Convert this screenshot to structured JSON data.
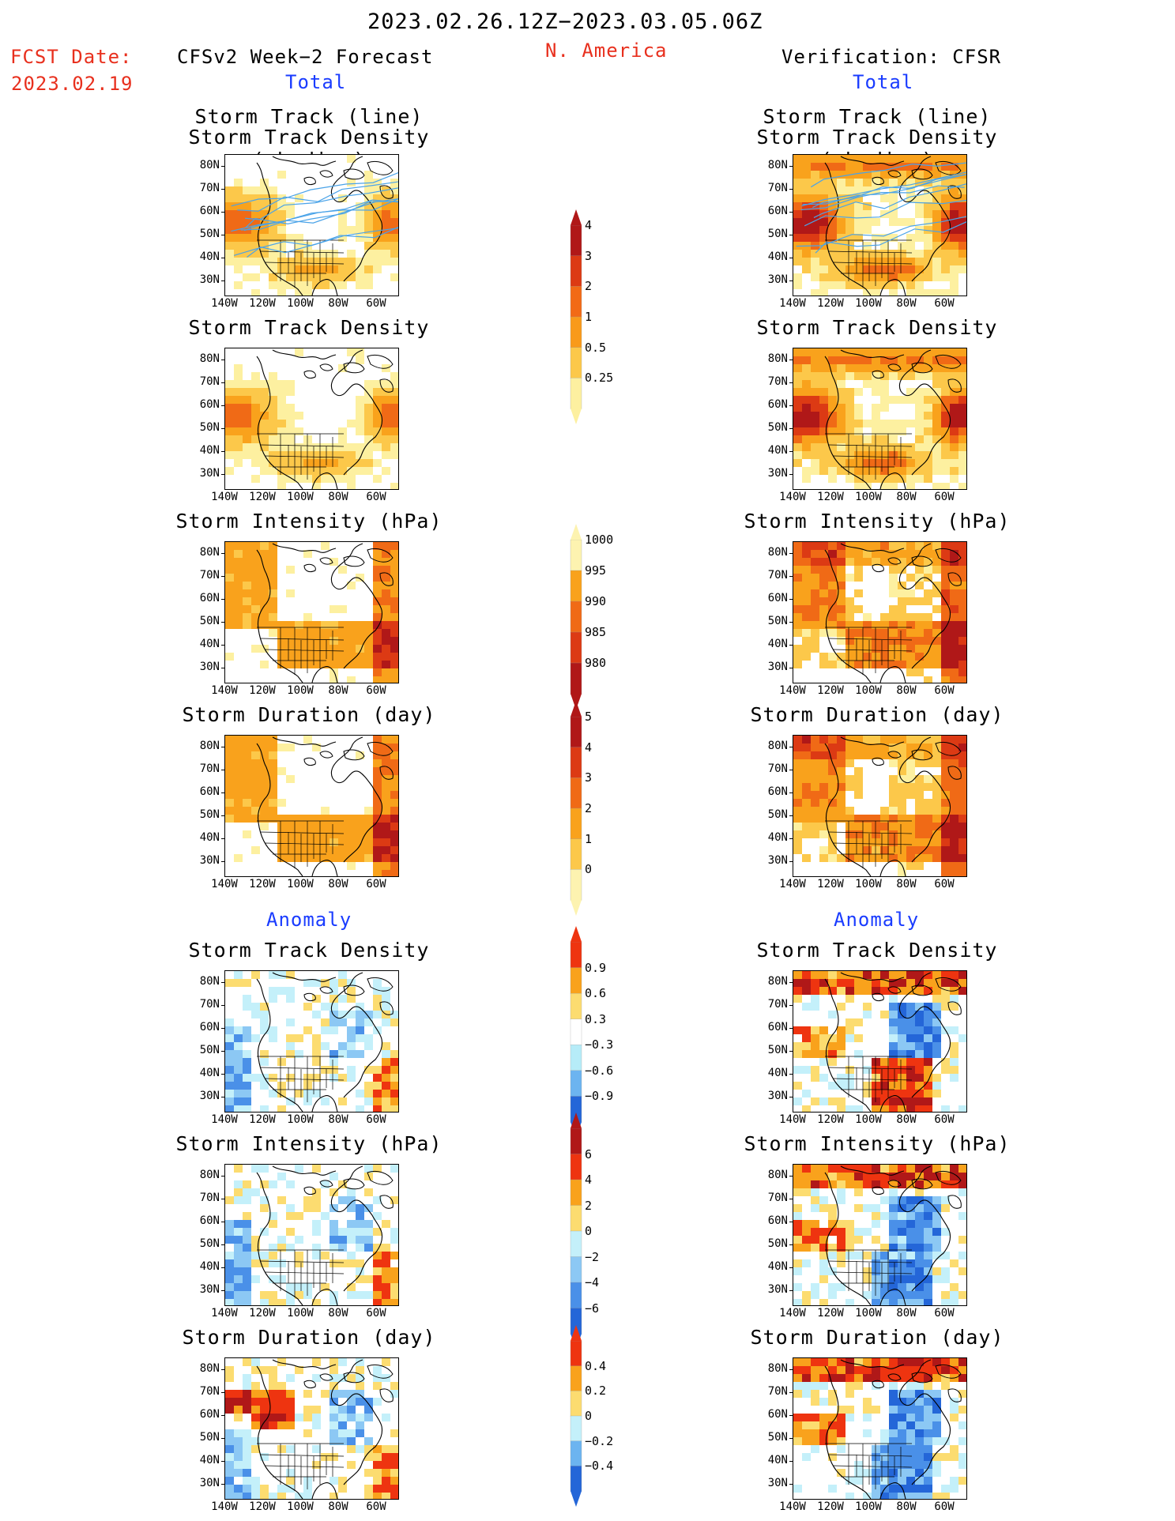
{
  "header": {
    "date_range": "2023.02.26.12Z−2023.03.05.06Z",
    "region": "N. America",
    "fcst_date_label": "FCST Date:",
    "fcst_date": "2023.02.19",
    "left_title": "CFSv2 Week−2 Forecast",
    "right_title": "Verification: CFSR",
    "total_label": "Total",
    "anomaly_label": "Anomaly"
  },
  "panel_titles": {
    "track1": "Storm Track (line)",
    "track2": "Storm Track Density (shading)",
    "density": "Storm Track Density",
    "intensity": "Storm Intensity (hPa)",
    "duration": "Storm Duration (day)"
  },
  "axes": {
    "lat_labels": [
      "80N",
      "70N",
      "60N",
      "50N",
      "40N",
      "30N"
    ],
    "lon_labels": [
      "140W",
      "120W",
      "100W",
      "80W",
      "60W"
    ]
  },
  "colorbars": {
    "density_total": {
      "labels": [
        "4",
        "3",
        "2",
        "1",
        "0.5",
        "0.25"
      ],
      "colors": [
        "#b01818",
        "#dc3a14",
        "#f26a16",
        "#f99a1a",
        "#fcc84a",
        "#fdf0a0"
      ]
    },
    "intensity_total": {
      "labels": [
        "1000",
        "995",
        "990",
        "985",
        "980"
      ],
      "colors": [
        "#fdf3b0",
        "#f9a21c",
        "#f06a16",
        "#dc3a14",
        "#b01818"
      ]
    },
    "duration_total": {
      "labels": [
        "5",
        "4",
        "3",
        "2",
        "1",
        "0"
      ],
      "colors": [
        "#b01818",
        "#dc3a14",
        "#f06a16",
        "#f9a21c",
        "#fcc84a",
        "#fdf3b0"
      ]
    },
    "density_anom": {
      "labels": [
        "0.9",
        "0.6",
        "0.3",
        "−0.3",
        "−0.6",
        "−0.9"
      ],
      "colors": [
        "#ee3410",
        "#f9a21c",
        "#fcdc70",
        "#ffffff",
        "#b6ecf8",
        "#6cb4f0",
        "#2466d8"
      ]
    },
    "intensity_anom": {
      "labels": [
        "6",
        "4",
        "2",
        "0",
        "−2",
        "−4",
        "−6"
      ],
      "colors": [
        "#b01818",
        "#ee3410",
        "#f9a21c",
        "#fcdc70",
        "#c4f0fa",
        "#8cc8f4",
        "#4a90e8",
        "#2466d8"
      ]
    },
    "duration_anom": {
      "labels": [
        "0.4",
        "0.2",
        "0",
        "−0.2",
        "−0.4"
      ],
      "colors": [
        "#ee3410",
        "#f9a21c",
        "#fcdc70",
        "#c4f0fa",
        "#6cb4f0",
        "#2466d8"
      ]
    }
  },
  "legend_colors": {
    "track_line": "#4aa3e8",
    "map_border": "#000000"
  }
}
